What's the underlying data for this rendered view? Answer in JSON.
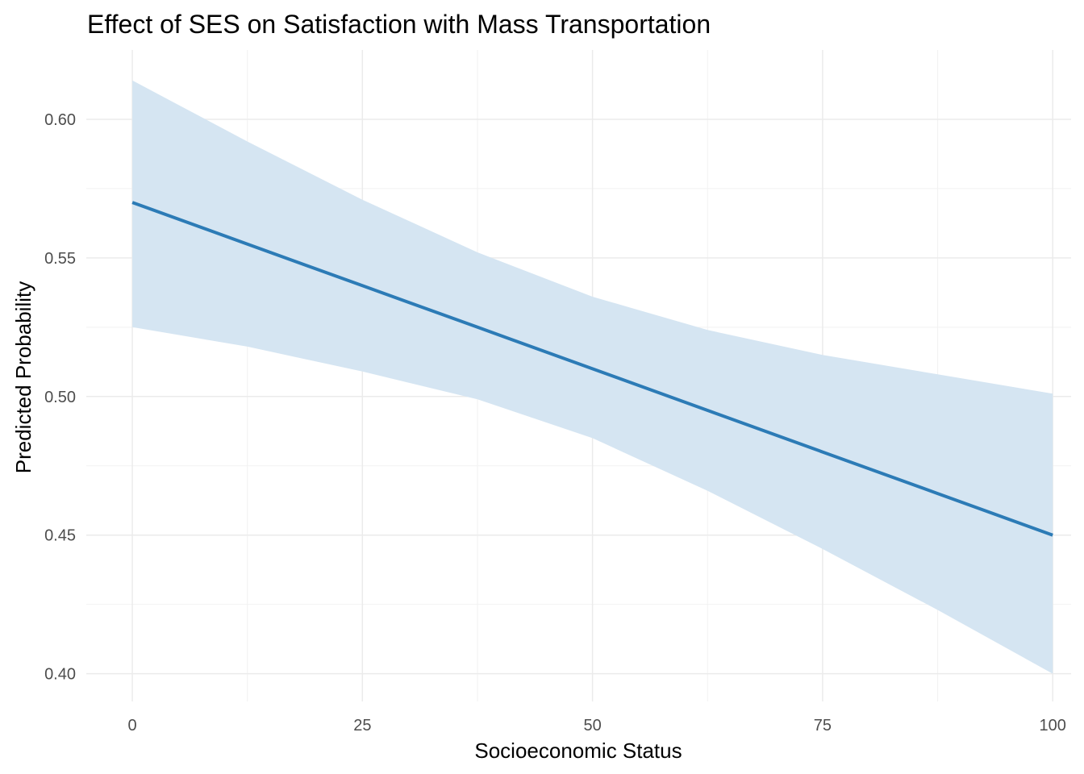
{
  "chart_data": {
    "type": "line",
    "title": "Effect of SES on Satisfaction with Mass Transportation",
    "xlabel": "Socioeconomic Status",
    "ylabel": "Predicted Probability",
    "xlim": [
      -5,
      102
    ],
    "ylim": [
      0.39,
      0.625
    ],
    "x_ticks": [
      0,
      25,
      50,
      75,
      100
    ],
    "x_tick_labels": [
      "0",
      "25",
      "50",
      "75",
      "100"
    ],
    "y_ticks": [
      0.4,
      0.45,
      0.5,
      0.55,
      0.6
    ],
    "y_tick_labels": [
      "0.40",
      "0.45",
      "0.50",
      "0.55",
      "0.60"
    ],
    "grid": true,
    "legend": "none",
    "series": [
      {
        "x": [
          0,
          12.5,
          25,
          37.5,
          50,
          62.5,
          75,
          87.5,
          100
        ],
        "values": [
          0.57,
          0.555,
          0.54,
          0.525,
          0.51,
          0.495,
          0.48,
          0.465,
          0.45
        ],
        "color": "#2c7bb6",
        "ribbon_lower": [
          0.525,
          0.518,
          0.509,
          0.499,
          0.485,
          0.466,
          0.445,
          0.423,
          0.4
        ],
        "ribbon_upper": [
          0.614,
          0.592,
          0.571,
          0.552,
          0.536,
          0.524,
          0.515,
          0.508,
          0.501
        ],
        "ribbon_color": "#d5e5f2"
      }
    ]
  }
}
